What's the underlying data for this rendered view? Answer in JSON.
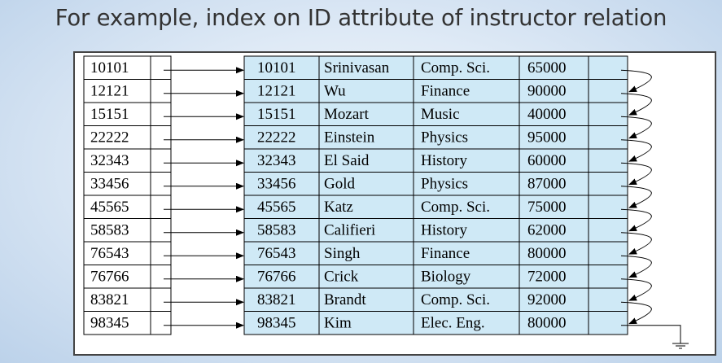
{
  "heading": "For example, index on ID attribute of instructor relation",
  "index_entries": [
    "10101",
    "12121",
    "15151",
    "22222",
    "32343",
    "33456",
    "45565",
    "58583",
    "76543",
    "76766",
    "83821",
    "98345"
  ],
  "records": [
    {
      "id": "10101",
      "name": "Srinivasan",
      "dept": "Comp. Sci.",
      "salary": "65000"
    },
    {
      "id": "12121",
      "name": "Wu",
      "dept": "Finance",
      "salary": "90000"
    },
    {
      "id": "15151",
      "name": "Mozart",
      "dept": "Music",
      "salary": "40000"
    },
    {
      "id": "22222",
      "name": "Einstein",
      "dept": "Physics",
      "salary": "95000"
    },
    {
      "id": "32343",
      "name": "El Said",
      "dept": "History",
      "salary": "60000"
    },
    {
      "id": "33456",
      "name": "Gold",
      "dept": "Physics",
      "salary": "87000"
    },
    {
      "id": "45565",
      "name": "Katz",
      "dept": "Comp. Sci.",
      "salary": "75000"
    },
    {
      "id": "58583",
      "name": "Califieri",
      "dept": "History",
      "salary": "62000"
    },
    {
      "id": "76543",
      "name": "Singh",
      "dept": "Finance",
      "salary": "80000"
    },
    {
      "id": "76766",
      "name": "Crick",
      "dept": "Biology",
      "salary": "72000"
    },
    {
      "id": "83821",
      "name": "Brandt",
      "dept": "Comp. Sci.",
      "salary": "92000"
    },
    {
      "id": "98345",
      "name": "Kim",
      "dept": "Elec. Eng.",
      "salary": "80000"
    }
  ],
  "colors": {
    "record_fill": "#cfe9f6",
    "line": "#000000",
    "frame": "#444444"
  }
}
